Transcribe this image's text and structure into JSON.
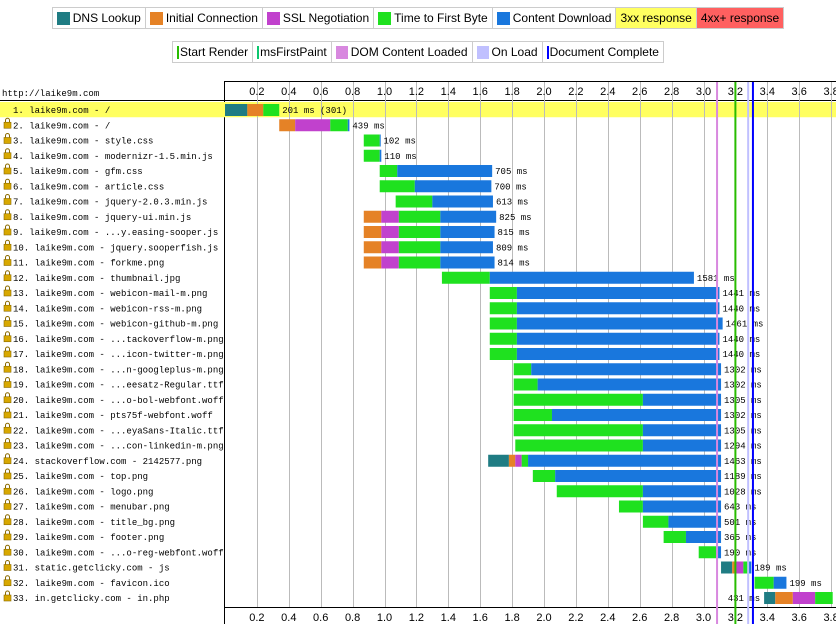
{
  "legend": {
    "phases": [
      {
        "label": "DNS Lookup",
        "color": "#1f7c83"
      },
      {
        "label": "Initial Connection",
        "color": "#e58226"
      },
      {
        "label": "SSL Negotiation",
        "color": "#c141cd"
      },
      {
        "label": "Time to First Byte",
        "color": "#1fe11f"
      },
      {
        "label": "Content Download",
        "color": "#1977dd"
      },
      {
        "label": "3xx response",
        "color": "#ffff60"
      },
      {
        "label": "4xx+ response",
        "color": "#ff6060"
      }
    ],
    "markers": [
      {
        "label": "Start Render",
        "color": "#28bc00"
      },
      {
        "label": "msFirstPaint",
        "color": "#0cc66e"
      },
      {
        "label": "DOM Content Loaded",
        "color": "#d888df"
      },
      {
        "label": "On Load",
        "color": "#c0c0ff"
      },
      {
        "label": "Document Complete",
        "color": "#0000ff"
      }
    ]
  },
  "page_url": "http://laike9m.com",
  "chart_data": {
    "type": "waterfall",
    "x_unit": "seconds",
    "xlim": [
      0,
      3.8
    ],
    "ticks": [
      "0.2",
      "0.4",
      "0.6",
      "0.8",
      "1.0",
      "1.2",
      "1.4",
      "1.6",
      "1.8",
      "2.0",
      "2.2",
      "2.4",
      "2.6",
      "2.8",
      "3.0",
      "3.2",
      "3.4",
      "3.6",
      "3.8"
    ],
    "markers": [
      {
        "name": "DOM Content Loaded",
        "time": 3.085,
        "color": "#d888df"
      },
      {
        "name": "Start Render",
        "time": 3.2,
        "color": "#28bc00"
      },
      {
        "name": "On Load",
        "time": 3.28,
        "color": "#c0c0ff"
      },
      {
        "name": "Document Complete",
        "time": 3.31,
        "color": "#0000ff"
      }
    ],
    "requests": [
      {
        "label": "1. laike9m.com - /",
        "duration": "201 ms (301)",
        "highlight": "3xx",
        "segments": [
          {
            "p": "dns",
            "s": 0.0,
            "e": 0.14
          },
          {
            "p": "conn",
            "s": 0.14,
            "e": 0.24
          },
          {
            "p": "ttfb",
            "s": 0.24,
            "e": 0.34
          }
        ]
      },
      {
        "label": "2. laike9m.com - /",
        "duration": "439 ms",
        "secure": true,
        "segments": [
          {
            "p": "conn",
            "s": 0.34,
            "e": 0.44
          },
          {
            "p": "ssl",
            "s": 0.44,
            "e": 0.66
          },
          {
            "p": "ttfb",
            "s": 0.66,
            "e": 0.77
          },
          {
            "p": "download",
            "s": 0.77,
            "e": 0.78
          }
        ]
      },
      {
        "label": "3. laike9m.com - style.css",
        "duration": "102 ms",
        "secure": true,
        "segments": [
          {
            "p": "ttfb",
            "s": 0.87,
            "e": 0.97
          },
          {
            "p": "download",
            "s": 0.97,
            "e": 0.975
          }
        ]
      },
      {
        "label": "4. laike9m.com - modernizr-1.5.min.js",
        "duration": "110 ms",
        "secure": true,
        "segments": [
          {
            "p": "ttfb",
            "s": 0.87,
            "e": 0.97
          },
          {
            "p": "download",
            "s": 0.97,
            "e": 0.98
          }
        ]
      },
      {
        "label": "5. laike9m.com - gfm.css",
        "duration": "705 ms",
        "secure": true,
        "segments": [
          {
            "p": "ttfb",
            "s": 0.97,
            "e": 1.08
          },
          {
            "p": "download",
            "s": 1.08,
            "e": 1.675
          }
        ]
      },
      {
        "label": "6. laike9m.com - article.css",
        "duration": "700 ms",
        "secure": true,
        "segments": [
          {
            "p": "ttfb",
            "s": 0.97,
            "e": 1.19
          },
          {
            "p": "download",
            "s": 1.19,
            "e": 1.67
          }
        ]
      },
      {
        "label": "7. laike9m.com - jquery-2.0.3.min.js",
        "duration": "613 ms",
        "secure": true,
        "segments": [
          {
            "p": "ttfb",
            "s": 1.07,
            "e": 1.3
          },
          {
            "p": "download",
            "s": 1.3,
            "e": 1.68
          }
        ]
      },
      {
        "label": "8. laike9m.com - jquery-ui.min.js",
        "duration": "825 ms",
        "secure": true,
        "segments": [
          {
            "p": "conn",
            "s": 0.87,
            "e": 0.98
          },
          {
            "p": "ssl",
            "s": 0.98,
            "e": 1.09
          },
          {
            "p": "ttfb",
            "s": 1.09,
            "e": 1.35
          },
          {
            "p": "download",
            "s": 1.35,
            "e": 1.7
          }
        ]
      },
      {
        "label": "9. laike9m.com - ...y.easing-sooper.js",
        "duration": "815 ms",
        "secure": true,
        "segments": [
          {
            "p": "conn",
            "s": 0.87,
            "e": 0.98
          },
          {
            "p": "ssl",
            "s": 0.98,
            "e": 1.09
          },
          {
            "p": "ttfb",
            "s": 1.09,
            "e": 1.35
          },
          {
            "p": "download",
            "s": 1.35,
            "e": 1.69
          }
        ]
      },
      {
        "label": "10. laike9m.com - jquery.sooperfish.js",
        "duration": "809 ms",
        "secure": true,
        "segments": [
          {
            "p": "conn",
            "s": 0.87,
            "e": 0.98
          },
          {
            "p": "ssl",
            "s": 0.98,
            "e": 1.09
          },
          {
            "p": "ttfb",
            "s": 1.09,
            "e": 1.35
          },
          {
            "p": "download",
            "s": 1.35,
            "e": 1.68
          }
        ]
      },
      {
        "label": "11. laike9m.com - forkme.png",
        "duration": "814 ms",
        "secure": true,
        "segments": [
          {
            "p": "conn",
            "s": 0.87,
            "e": 0.98
          },
          {
            "p": "ssl",
            "s": 0.98,
            "e": 1.09
          },
          {
            "p": "ttfb",
            "s": 1.09,
            "e": 1.35
          },
          {
            "p": "download",
            "s": 1.35,
            "e": 1.69
          }
        ]
      },
      {
        "label": "12. laike9m.com - thumbnail.jpg",
        "duration": "1581 ms",
        "secure": true,
        "segments": [
          {
            "p": "ttfb",
            "s": 1.36,
            "e": 1.66
          },
          {
            "p": "download",
            "s": 1.66,
            "e": 2.94
          }
        ]
      },
      {
        "label": "13. laike9m.com - webicon-mail-m.png",
        "duration": "1441 ms",
        "secure": true,
        "segments": [
          {
            "p": "ttfb",
            "s": 1.66,
            "e": 1.83
          },
          {
            "p": "download",
            "s": 1.83,
            "e": 3.1
          }
        ]
      },
      {
        "label": "14. laike9m.com - webicon-rss-m.png",
        "duration": "1440 ms",
        "secure": true,
        "segments": [
          {
            "p": "ttfb",
            "s": 1.66,
            "e": 1.83
          },
          {
            "p": "download",
            "s": 1.83,
            "e": 3.1
          }
        ]
      },
      {
        "label": "15. laike9m.com - webicon-github-m.png",
        "duration": "1461 ms",
        "secure": true,
        "segments": [
          {
            "p": "ttfb",
            "s": 1.66,
            "e": 1.83
          },
          {
            "p": "download",
            "s": 1.83,
            "e": 3.12
          }
        ]
      },
      {
        "label": "16. laike9m.com - ...tackoverflow-m.png",
        "duration": "1440 ms",
        "secure": true,
        "segments": [
          {
            "p": "ttfb",
            "s": 1.66,
            "e": 1.83
          },
          {
            "p": "download",
            "s": 1.83,
            "e": 3.1
          }
        ]
      },
      {
        "label": "17. laike9m.com - ...icon-twitter-m.png",
        "duration": "1440 ms",
        "secure": true,
        "segments": [
          {
            "p": "ttfb",
            "s": 1.66,
            "e": 1.83
          },
          {
            "p": "download",
            "s": 1.83,
            "e": 3.1
          }
        ]
      },
      {
        "label": "18. laike9m.com - ...n-googleplus-m.png",
        "duration": "1302 ms",
        "secure": true,
        "segments": [
          {
            "p": "ttfb",
            "s": 1.81,
            "e": 1.92
          },
          {
            "p": "download",
            "s": 1.92,
            "e": 3.11
          }
        ]
      },
      {
        "label": "19. laike9m.com - ...eesatz-Regular.ttf",
        "duration": "1302 ms",
        "secure": true,
        "segments": [
          {
            "p": "ttfb",
            "s": 1.81,
            "e": 1.96
          },
          {
            "p": "download",
            "s": 1.96,
            "e": 3.11
          }
        ]
      },
      {
        "label": "20. laike9m.com - ...o-bol-webfont.woff",
        "duration": "1305 ms",
        "secure": true,
        "segments": [
          {
            "p": "ttfb",
            "s": 1.81,
            "e": 2.62
          },
          {
            "p": "download",
            "s": 2.62,
            "e": 3.11
          }
        ]
      },
      {
        "label": "21. laike9m.com - pts75f-webfont.woff",
        "duration": "1302 ms",
        "secure": true,
        "segments": [
          {
            "p": "ttfb",
            "s": 1.81,
            "e": 2.05
          },
          {
            "p": "download",
            "s": 2.05,
            "e": 3.11
          }
        ]
      },
      {
        "label": "22. laike9m.com - ...eyaSans-Italic.ttf",
        "duration": "1305 ms",
        "secure": true,
        "segments": [
          {
            "p": "ttfb",
            "s": 1.81,
            "e": 2.62
          },
          {
            "p": "download",
            "s": 2.62,
            "e": 3.11
          }
        ]
      },
      {
        "label": "23. laike9m.com - ...con-linkedin-m.png",
        "duration": "1294 ms",
        "secure": true,
        "segments": [
          {
            "p": "ttfb",
            "s": 1.82,
            "e": 2.62
          },
          {
            "p": "download",
            "s": 2.62,
            "e": 3.11
          }
        ]
      },
      {
        "label": "24. stackoverflow.com - 2142577.png",
        "duration": "1463 ms",
        "secure": true,
        "segments": [
          {
            "p": "dns",
            "s": 1.65,
            "e": 1.78
          },
          {
            "p": "conn",
            "s": 1.78,
            "e": 1.82
          },
          {
            "p": "ssl",
            "s": 1.82,
            "e": 1.86
          },
          {
            "p": "ttfb",
            "s": 1.86,
            "e": 1.9
          },
          {
            "p": "download",
            "s": 1.9,
            "e": 3.11
          }
        ]
      },
      {
        "label": "25. laike9m.com - top.png",
        "duration": "1189 ms",
        "secure": true,
        "segments": [
          {
            "p": "ttfb",
            "s": 1.93,
            "e": 2.07
          },
          {
            "p": "download",
            "s": 2.07,
            "e": 3.11
          }
        ]
      },
      {
        "label": "26. laike9m.com - logo.png",
        "duration": "1028 ms",
        "secure": true,
        "segments": [
          {
            "p": "ttfb",
            "s": 2.08,
            "e": 2.62
          },
          {
            "p": "download",
            "s": 2.62,
            "e": 3.11
          }
        ]
      },
      {
        "label": "27. laike9m.com - menubar.png",
        "duration": "643 ms",
        "secure": true,
        "segments": [
          {
            "p": "ttfb",
            "s": 2.47,
            "e": 2.62
          },
          {
            "p": "download",
            "s": 2.62,
            "e": 3.11
          }
        ]
      },
      {
        "label": "28. laike9m.com - title_bg.png",
        "duration": "501 ms",
        "secure": true,
        "segments": [
          {
            "p": "ttfb",
            "s": 2.62,
            "e": 2.78
          },
          {
            "p": "download",
            "s": 2.78,
            "e": 3.11
          }
        ]
      },
      {
        "label": "29. laike9m.com - footer.png",
        "duration": "365 ms",
        "secure": true,
        "segments": [
          {
            "p": "ttfb",
            "s": 2.75,
            "e": 2.89
          },
          {
            "p": "download",
            "s": 2.89,
            "e": 3.11
          }
        ]
      },
      {
        "label": "30. laike9m.com - ...o-reg-webfont.woff",
        "duration": "190 ms",
        "secure": true,
        "segments": [
          {
            "p": "ttfb",
            "s": 2.97,
            "e": 3.08
          },
          {
            "p": "download",
            "s": 3.08,
            "e": 3.11
          }
        ]
      },
      {
        "label": "31. static.getclicky.com - js",
        "duration": "189 ms",
        "secure": true,
        "segments": [
          {
            "p": "dns",
            "s": 3.11,
            "e": 3.18
          },
          {
            "p": "conn",
            "s": 3.18,
            "e": 3.2
          },
          {
            "p": "ssl",
            "s": 3.2,
            "e": 3.25
          },
          {
            "p": "ttfb",
            "s": 3.25,
            "e": 3.28
          },
          {
            "p": "download",
            "s": 3.28,
            "e": 3.3
          }
        ]
      },
      {
        "label": "32. laike9m.com - favicon.ico",
        "duration": "199 ms",
        "secure": true,
        "segments": [
          {
            "p": "ttfb",
            "s": 3.32,
            "e": 3.44
          },
          {
            "p": "download",
            "s": 3.44,
            "e": 3.52
          }
        ]
      },
      {
        "label": "33. in.getclicky.com - in.php",
        "duration": "431 ms",
        "secure": true,
        "label_left": true,
        "segments": [
          {
            "p": "dns",
            "s": 3.38,
            "e": 3.45
          },
          {
            "p": "conn",
            "s": 3.45,
            "e": 3.56
          },
          {
            "p": "ssl",
            "s": 3.56,
            "e": 3.7
          },
          {
            "p": "ttfb",
            "s": 3.7,
            "e": 3.81
          }
        ]
      }
    ]
  }
}
